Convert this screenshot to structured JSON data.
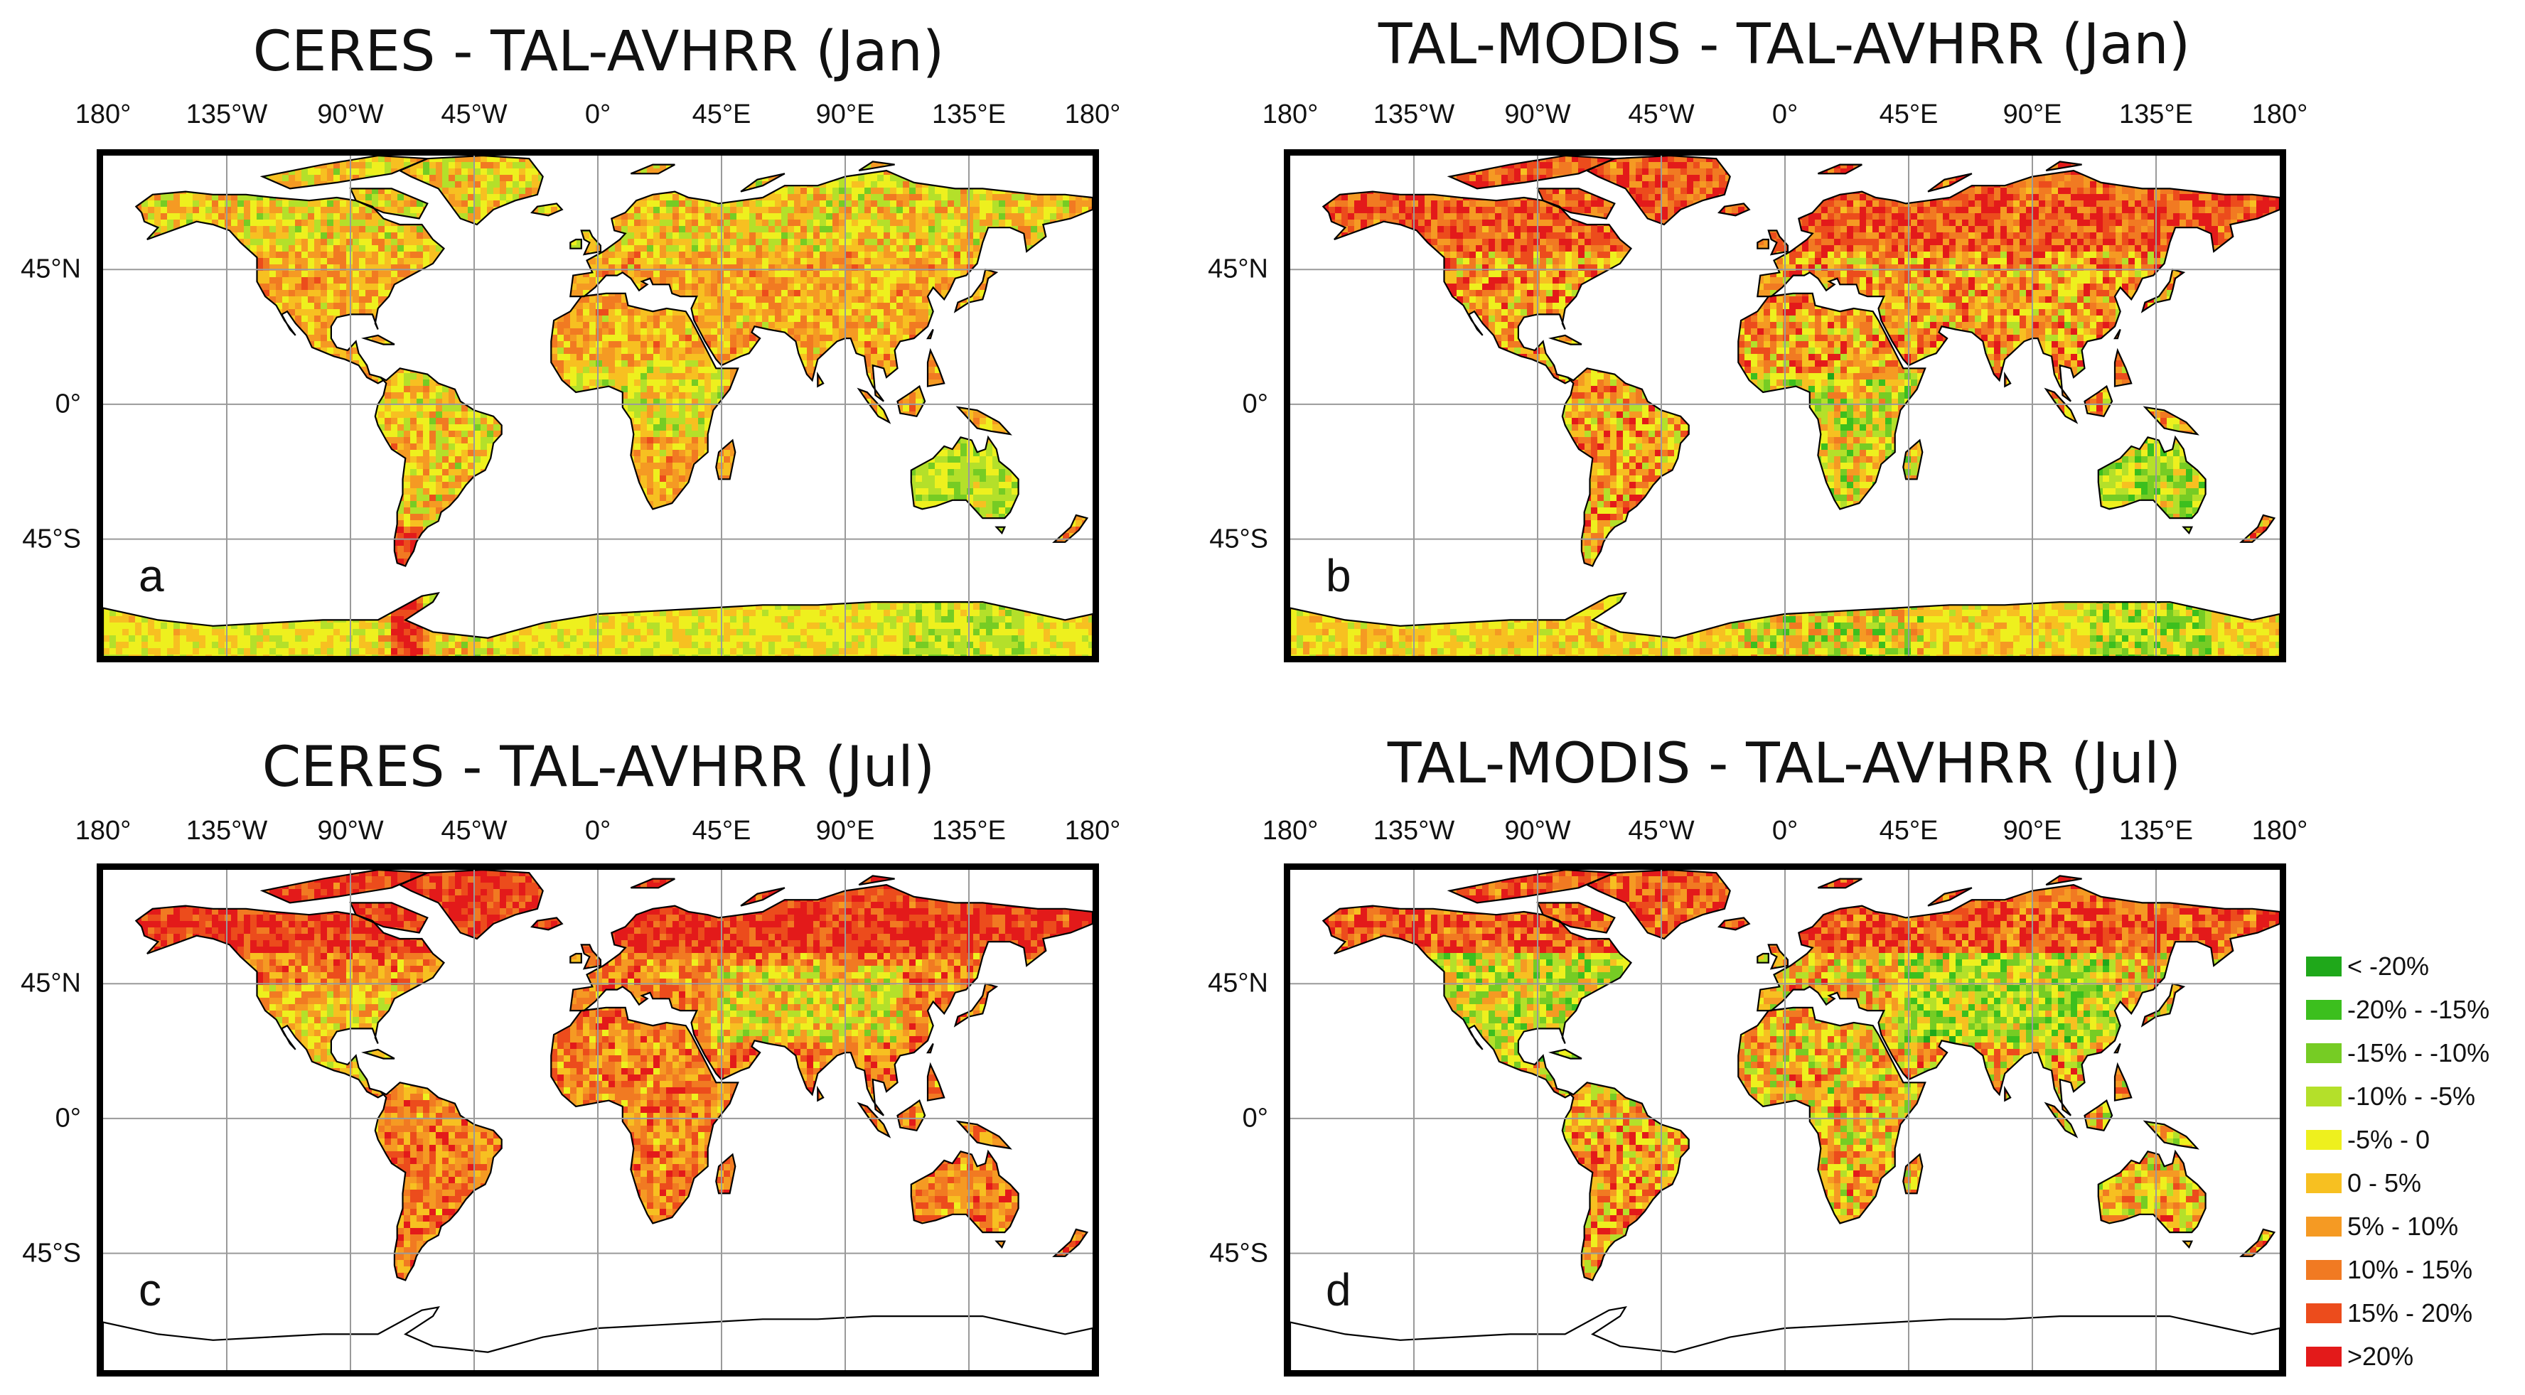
{
  "panels": [
    {
      "id": "a",
      "title": "CERES - TAL-AVHRR (Jan)",
      "label": "a",
      "pattern": "jan_ceres"
    },
    {
      "id": "b",
      "title": "TAL-MODIS - TAL-AVHRR (Jan)",
      "label": "b",
      "pattern": "jan_modis"
    },
    {
      "id": "c",
      "title": "CERES - TAL-AVHRR (Jul)",
      "label": "c",
      "pattern": "jul_ceres"
    },
    {
      "id": "d",
      "title": "TAL-MODIS - TAL-AVHRR (Jul)",
      "label": "d",
      "pattern": "jul_modis"
    }
  ],
  "lon_ticks": [
    "180°",
    "135°W",
    "90°W",
    "45°W",
    "0°",
    "45°E",
    "90°E",
    "135°E",
    "180°"
  ],
  "lon_values": [
    -180,
    -135,
    -90,
    -45,
    0,
    45,
    90,
    135,
    180
  ],
  "lat_ticks": [
    "45°N",
    "0°",
    "45°S"
  ],
  "lat_values": [
    45,
    0,
    -45
  ],
  "map_extent": {
    "lon": [
      -180,
      180
    ],
    "lat": [
      -90,
      90
    ]
  },
  "legend": [
    {
      "label": "< -20%",
      "color": "#1fa81a"
    },
    {
      "label": "-20% - -15%",
      "color": "#3cbf1e"
    },
    {
      "label": "-15% - -10%",
      "color": "#76cc24"
    },
    {
      "label": "-10% - -5%",
      "color": "#b4e02a"
    },
    {
      "label": "-5% - 0",
      "color": "#eef01e"
    },
    {
      "label": "0 - 5%",
      "color": "#f7c021"
    },
    {
      "label": "5% - 10%",
      "color": "#f59a23"
    },
    {
      "label": "10% - 15%",
      "color": "#f17a22"
    },
    {
      "label": "15% - 20%",
      "color": "#ec4c1c"
    },
    {
      "label": ">20%",
      "color": "#e31a1a"
    }
  ]
}
